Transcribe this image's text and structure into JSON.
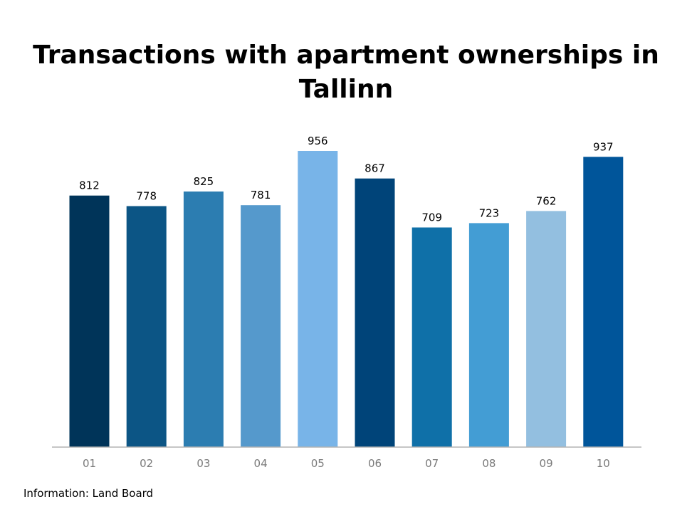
{
  "chart_data": {
    "type": "bar",
    "title": "Transactions with apartment ownerships in Tallinn",
    "xlabel": "",
    "ylabel": "",
    "categories": [
      "01",
      "02",
      "03",
      "04",
      "05",
      "06",
      "07",
      "08",
      "09",
      "10"
    ],
    "values": [
      812,
      778,
      825,
      781,
      956,
      867,
      709,
      723,
      762,
      937
    ],
    "colors": [
      "#003459",
      "#0c5585",
      "#2c7db1",
      "#5599cc",
      "#78b4e8",
      "#004479",
      "#0f70a8",
      "#439dd4",
      "#93bfe0",
      "#00559a"
    ],
    "ylim": [
      0,
      956
    ],
    "grid": false,
    "legend": "none",
    "data_labels": true
  },
  "source": "Information: Land Board"
}
